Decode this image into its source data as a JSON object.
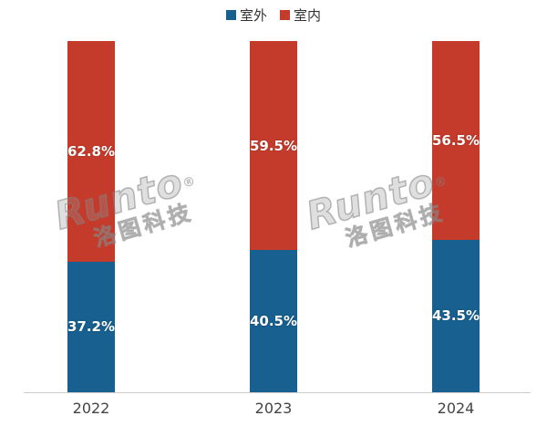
{
  "chart_data": {
    "type": "bar",
    "stacked": true,
    "categories": [
      "2022",
      "2023",
      "2024"
    ],
    "series": [
      {
        "name": "室外",
        "color": "#17608F",
        "values": [
          37.2,
          40.5,
          43.5
        ]
      },
      {
        "name": "室内",
        "color": "#C53B2B",
        "values": [
          62.8,
          59.5,
          56.5
        ]
      }
    ],
    "value_suffix": "%",
    "ylim": [
      0,
      100
    ],
    "grid": false,
    "legend_position": "top"
  },
  "legend": {
    "items": [
      {
        "label": "室外",
        "color": "#17608F"
      },
      {
        "label": "室内",
        "color": "#C53B2B"
      }
    ]
  },
  "x_axis": {
    "labels": [
      "2022",
      "2023",
      "2024"
    ]
  },
  "watermark": {
    "brand": "Runto",
    "reg": "®",
    "subtitle": "洛图科技"
  }
}
